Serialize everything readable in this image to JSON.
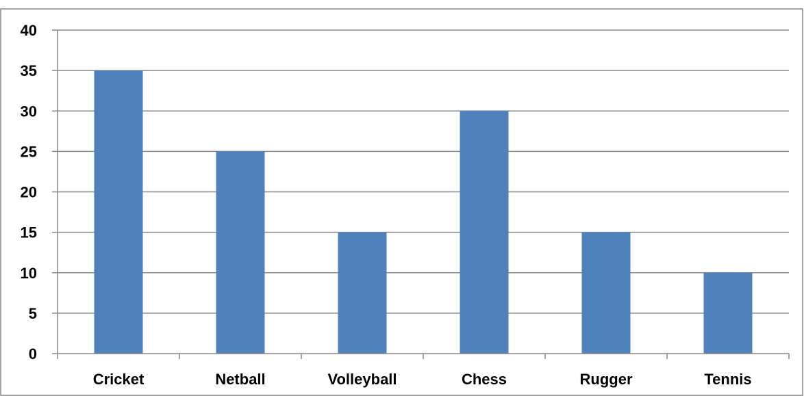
{
  "chart_data": {
    "type": "bar",
    "title": "",
    "xlabel": "",
    "ylabel": "",
    "categories": [
      "Cricket",
      "Netball",
      "Volleyball",
      "Chess",
      "Rugger",
      "Tennis"
    ],
    "values": [
      35,
      25,
      15,
      30,
      15,
      10
    ],
    "ylim": [
      0,
      40
    ],
    "yticks": [
      "0",
      "5",
      "10",
      "15",
      "20",
      "25",
      "30",
      "35",
      "40"
    ],
    "grid": true,
    "legend": "none",
    "colors": {
      "bar": "#4F81BD",
      "grid": "#868686",
      "border": "#868686"
    }
  }
}
